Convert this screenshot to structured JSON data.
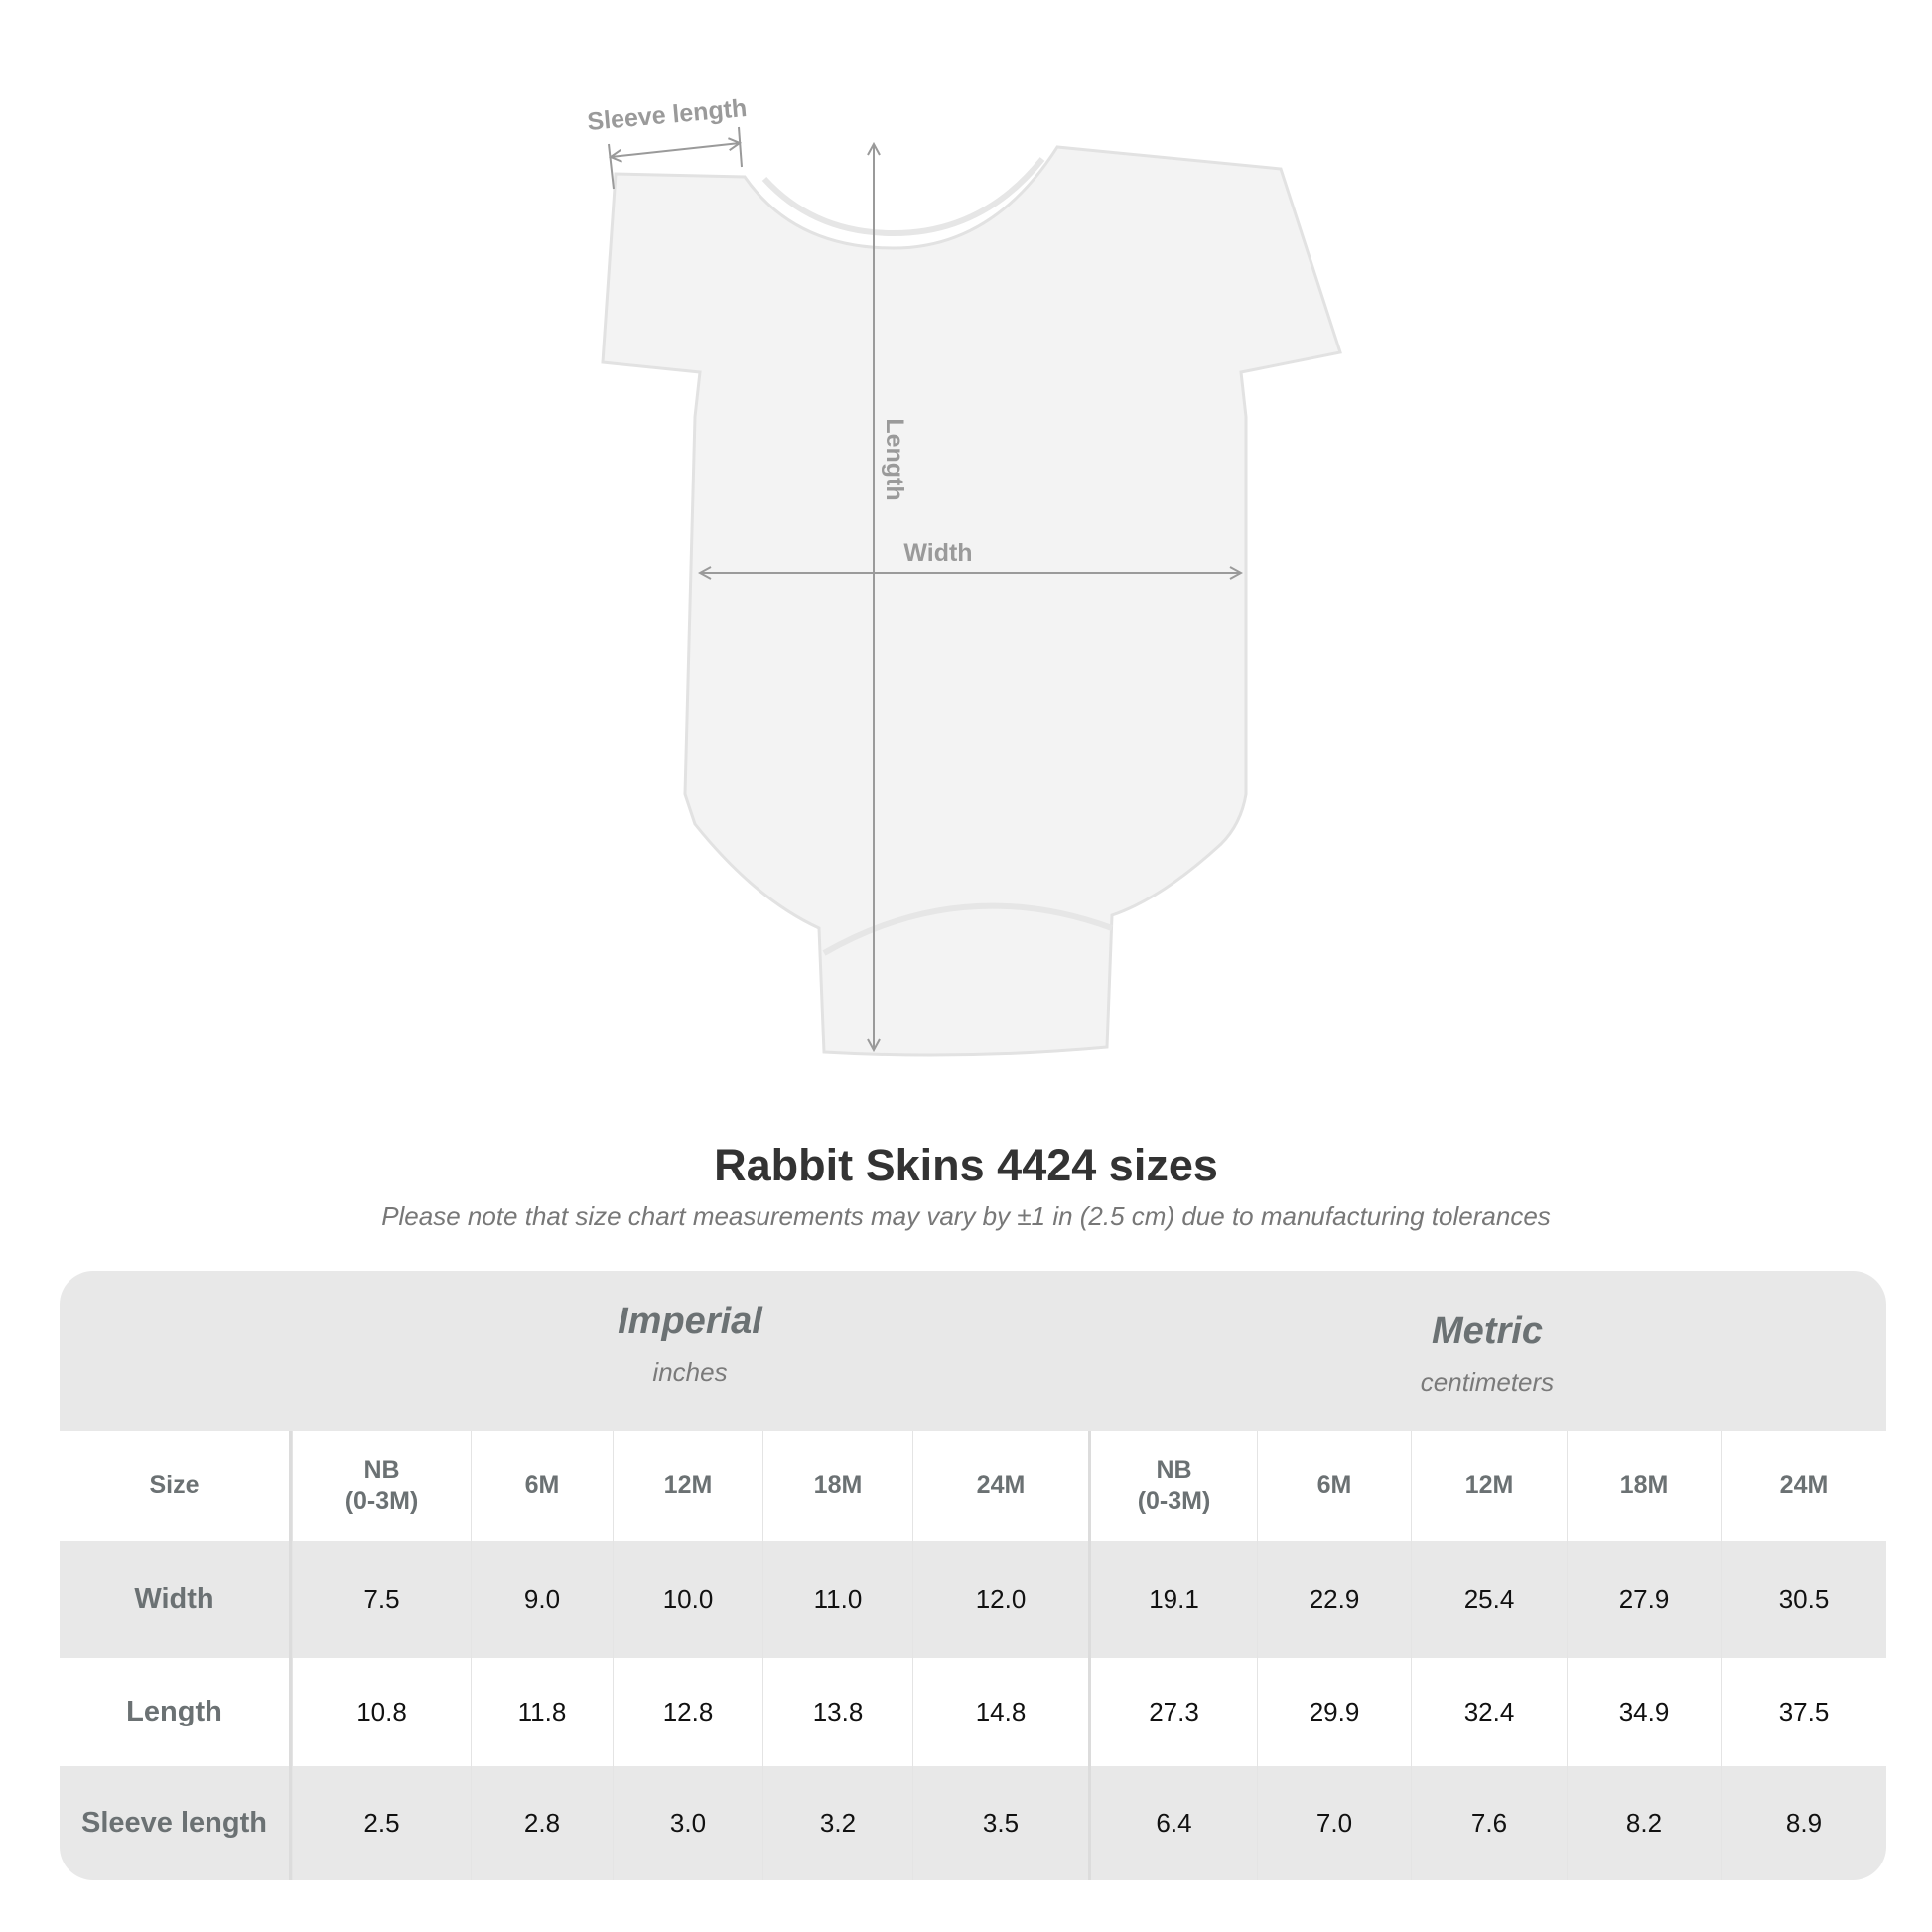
{
  "diagram": {
    "labels": {
      "sleeve": "Sleeve length",
      "length": "Length",
      "width": "Width"
    }
  },
  "title": "Rabbit Skins 4424 sizes",
  "subtitle": "Please note that size chart measurements may vary by ±1 in (2.5 cm) due to manufacturing tolerances",
  "table": {
    "imperial": {
      "name": "Imperial",
      "unit": "inches"
    },
    "metric": {
      "name": "Metric",
      "unit": "centimeters"
    },
    "size_label": "Size",
    "sizes": [
      "NB\n(0-3M)",
      "6M",
      "12M",
      "18M",
      "24M"
    ],
    "rows": [
      {
        "label": "Width",
        "imperial": [
          "7.5",
          "9.0",
          "10.0",
          "11.0",
          "12.0"
        ],
        "metric": [
          "19.1",
          "22.9",
          "25.4",
          "27.9",
          "30.5"
        ]
      },
      {
        "label": "Length",
        "imperial": [
          "10.8",
          "11.8",
          "12.8",
          "13.8",
          "14.8"
        ],
        "metric": [
          "27.3",
          "29.9",
          "32.4",
          "34.9",
          "37.5"
        ]
      },
      {
        "label": "Sleeve length",
        "imperial": [
          "2.5",
          "2.8",
          "3.0",
          "3.2",
          "3.5"
        ],
        "metric": [
          "6.4",
          "7.0",
          "7.6",
          "8.2",
          "8.9"
        ]
      }
    ]
  },
  "colors": {
    "header_bg": "#e8e8e8",
    "label_text": "#6b7173",
    "measure_line": "#9a9a9a"
  }
}
